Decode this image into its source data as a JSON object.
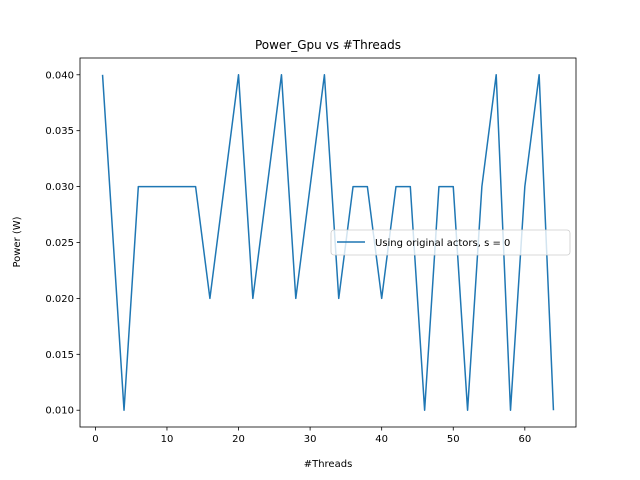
{
  "chart_data": {
    "type": "line",
    "title": "Power_Gpu vs #Threads",
    "xlabel": "#Threads",
    "ylabel": "Power (W)",
    "xlim": [
      -2.15,
      67.15
    ],
    "ylim": [
      0.0085,
      0.0415
    ],
    "xticks": [
      0,
      10,
      20,
      30,
      40,
      50,
      60
    ],
    "xtick_labels": [
      "0",
      "10",
      "20",
      "30",
      "40",
      "50",
      "60"
    ],
    "yticks": [
      0.01,
      0.015,
      0.02,
      0.025,
      0.03,
      0.035,
      0.04
    ],
    "ytick_labels": [
      "0.010",
      "0.015",
      "0.020",
      "0.025",
      "0.030",
      "0.035",
      "0.040"
    ],
    "grid": false,
    "legend_position": "center-right",
    "series": [
      {
        "name": "Using original actors, s = 0",
        "color": "#1f77b4",
        "x": [
          1,
          4,
          6,
          8,
          10,
          12,
          14,
          16,
          20,
          22,
          26,
          28,
          32,
          34,
          36,
          38,
          40,
          42,
          44,
          46,
          48,
          50,
          52,
          54,
          56,
          58,
          60,
          62,
          64
        ],
        "y": [
          0.04,
          0.01,
          0.03,
          0.03,
          0.03,
          0.03,
          0.03,
          0.02,
          0.04,
          0.02,
          0.04,
          0.02,
          0.04,
          0.02,
          0.03,
          0.03,
          0.02,
          0.03,
          0.03,
          0.01,
          0.03,
          0.03,
          0.01,
          0.03,
          0.04,
          0.01,
          0.03,
          0.04,
          0.01
        ]
      }
    ]
  }
}
